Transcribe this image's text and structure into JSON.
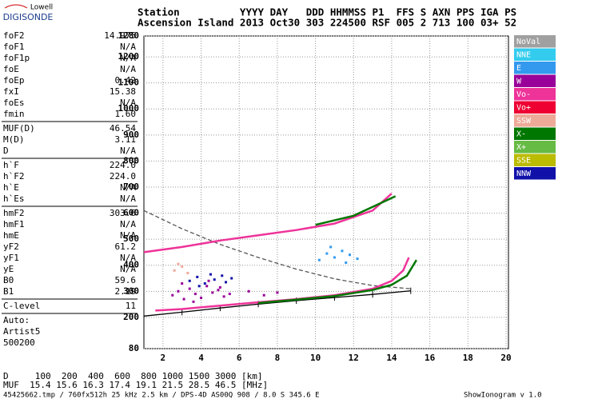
{
  "logo": {
    "top": "Lowell",
    "bottom": "DIGISONDE"
  },
  "header": {
    "line1": "Station          YYYY DAY   DDD HHMMSS P1  FFS S AXN PPS IGA PS",
    "line2": "Ascension Island 2013 Oct30 303 224500 RSF 005 2 713 100 03+ 52"
  },
  "params": [
    [
      [
        "foF2",
        "14.975"
      ],
      [
        "foF1",
        "N/A"
      ],
      [
        "foF1p",
        "N/A"
      ],
      [
        "foE",
        "N/A"
      ],
      [
        "foEp",
        "0.42"
      ],
      [
        "fxI",
        "15.38"
      ],
      [
        "foEs",
        "N/A"
      ],
      [
        "fmin",
        "1.60"
      ]
    ],
    [
      [
        "MUF(D)",
        "46.54"
      ],
      [
        "M(D)",
        "3.11"
      ],
      [
        "D",
        "N/A"
      ]
    ],
    [
      [
        "h`F",
        "224.0"
      ],
      [
        "h`F2",
        "224.0"
      ],
      [
        "h`E",
        "N/A"
      ],
      [
        "h`Es",
        "N/A"
      ]
    ],
    [
      [
        "hmF2",
        "303.6"
      ],
      [
        "hmF1",
        "N/A"
      ],
      [
        "hmE",
        "N/A"
      ],
      [
        "yF2",
        "61.2"
      ],
      [
        "yF1",
        "N/A"
      ],
      [
        "yE",
        "N/A"
      ],
      [
        "B0",
        "59.6"
      ],
      [
        "B1",
        "2.19"
      ]
    ],
    [
      [
        "C-level",
        "11"
      ]
    ]
  ],
  "notes": [
    "Auto:",
    "Artist5",
    "500200"
  ],
  "bottom": {
    "d_line": "D     100  200  400  600  800 1000 1500 3000 [km]",
    "muf_line": "MUF  15.4 15.6 16.3 17.4 19.1 21.5 28.5 46.5 [MHz]",
    "footer": "45425662.tmp / 760fx512h 25 kHz 2.5 km / DPS-4D AS00Q 908 / 8.0 S 345.6 E",
    "version": "ShowIonogram v 1.0"
  },
  "chart_data": {
    "type": "ionogram",
    "xlim": [
      1,
      20
    ],
    "ylim": [
      80,
      1280
    ],
    "xticks": [
      2,
      4,
      6,
      8,
      10,
      12,
      14,
      16,
      18,
      20
    ],
    "yticks": [
      80,
      200,
      300,
      400,
      500,
      600,
      700,
      800,
      900,
      1000,
      1100,
      1200,
      1280
    ],
    "grid": true,
    "legend": [
      {
        "name": "NoVal",
        "color": "#a0a0a0"
      },
      {
        "name": "NNE",
        "color": "#33ccee"
      },
      {
        "name": "E",
        "color": "#3399ee"
      },
      {
        "name": "W",
        "color": "#990099"
      },
      {
        "name": "Vo-",
        "color": "#ee3399"
      },
      {
        "name": "Vo+",
        "color": "#ee0033"
      },
      {
        "name": "SSW",
        "color": "#eeaa99"
      },
      {
        "name": "X-",
        "color": "#007700"
      },
      {
        "name": "X+",
        "color": "#66bb44"
      },
      {
        "name": "SSE",
        "color": "#bbbb00"
      },
      {
        "name": "NNW",
        "color": "#1111aa"
      }
    ],
    "series": [
      {
        "color": "#000000",
        "style": "profile",
        "x": [
          1,
          3,
          5,
          7,
          9,
          11,
          13,
          15
        ],
        "y": [
          205,
          220,
          236,
          251,
          264,
          276,
          288,
          302
        ]
      },
      {
        "color": "#555555",
        "style": "dashed",
        "x": [
          1,
          3,
          5,
          7,
          9,
          11,
          13,
          15
        ],
        "y": [
          610,
          540,
          480,
          430,
          385,
          348,
          322,
          310
        ]
      },
      {
        "color": "#ee3399",
        "style": "line",
        "x": [
          1.6,
          3,
          5,
          7,
          9,
          11,
          13,
          14,
          14.6,
          14.9
        ],
        "y": [
          226,
          232,
          245,
          258,
          270,
          285,
          310,
          340,
          380,
          430
        ]
      },
      {
        "color": "#ee3399",
        "style": "line",
        "x": [
          1,
          3,
          5,
          7,
          9,
          11,
          13,
          14
        ],
        "y": [
          450,
          470,
          495,
          515,
          535,
          560,
          610,
          675
        ]
      },
      {
        "color": "#007700",
        "style": "line",
        "x": [
          7,
          9,
          11,
          13,
          14,
          14.8,
          15.3
        ],
        "y": [
          255,
          268,
          282,
          305,
          325,
          360,
          420
        ]
      },
      {
        "color": "#007700",
        "style": "line",
        "x": [
          10,
          12,
          14.2
        ],
        "y": [
          555,
          590,
          665
        ]
      },
      {
        "color": "#990099",
        "style": "points",
        "x": [
          2.5,
          2.8,
          3.1,
          3.4,
          3.7,
          4.0,
          4.3,
          4.6,
          4.9,
          5.2,
          5.5,
          3.0,
          3.6,
          4.4,
          5.0,
          6.5,
          7.3,
          8.0
        ],
        "y": [
          285,
          300,
          270,
          310,
          290,
          275,
          320,
          295,
          305,
          280,
          290,
          330,
          260,
          340,
          315,
          300,
          285,
          295
        ]
      },
      {
        "color": "#1111aa",
        "style": "points",
        "x": [
          3.4,
          3.8,
          4.2,
          4.7,
          5.1,
          5.6,
          3.9,
          4.5,
          5.3
        ],
        "y": [
          340,
          355,
          330,
          345,
          360,
          350,
          320,
          365,
          335
        ]
      },
      {
        "color": "#3399ee",
        "style": "points",
        "x": [
          10.2,
          10.6,
          11.0,
          11.4,
          11.8,
          12.2,
          10.8,
          11.6
        ],
        "y": [
          420,
          445,
          430,
          455,
          440,
          425,
          470,
          410
        ]
      },
      {
        "color": "#eeaa99",
        "style": "points",
        "x": [
          2.6,
          3.0,
          3.3,
          2.8
        ],
        "y": [
          380,
          395,
          370,
          405
        ]
      }
    ]
  }
}
